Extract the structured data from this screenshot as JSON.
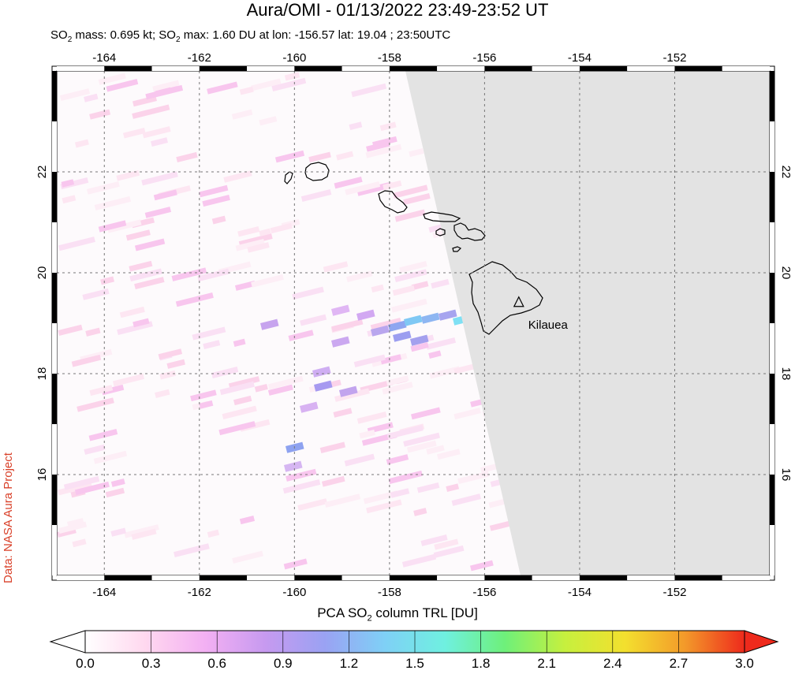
{
  "title": "Aura/OMI - 01/13/2022 23:49-23:52 UT",
  "subtitle": {
    "prefix": "SO",
    "sub1": "2",
    "mid": " mass: 0.695 kt; SO",
    "sub2": "2",
    "rest": " max: 1.60 DU at lon: -156.57 lat: 19.04 ; 23:50UTC"
  },
  "credit": "Data: NASA Aura Project",
  "map": {
    "lon_range": [
      -165.0,
      -150.0
    ],
    "lat_range": [
      14.0,
      24.0
    ],
    "lon_ticks": [
      "-164",
      "-162",
      "-160",
      "-158",
      "-156",
      "-154",
      "-152"
    ],
    "lat_ticks": [
      "16",
      "18",
      "20",
      "22"
    ],
    "grid": "dashed",
    "no_data_color": "#e3e3e3",
    "volcano": {
      "name": "Kilauea",
      "lon": -155.28,
      "lat": 19.41,
      "marker": "triangle-icon"
    }
  },
  "colorbar": {
    "title_prefix": "PCA SO",
    "title_sub": "2",
    "title_suffix": " column TRL [DU]",
    "ticks": [
      "0.0",
      "0.3",
      "0.6",
      "0.9",
      "1.2",
      "1.5",
      "1.8",
      "2.1",
      "2.4",
      "2.7",
      "3.0"
    ],
    "range": [
      0.0,
      3.0
    ],
    "colors": [
      "#ffffff",
      "#ffd8ef",
      "#f3b0f3",
      "#c79af0",
      "#9aa2f3",
      "#7fd0f6",
      "#6ff0e0",
      "#6ef07a",
      "#c6f03e",
      "#f3e02e",
      "#f39a2a",
      "#ee2a1c"
    ]
  }
}
